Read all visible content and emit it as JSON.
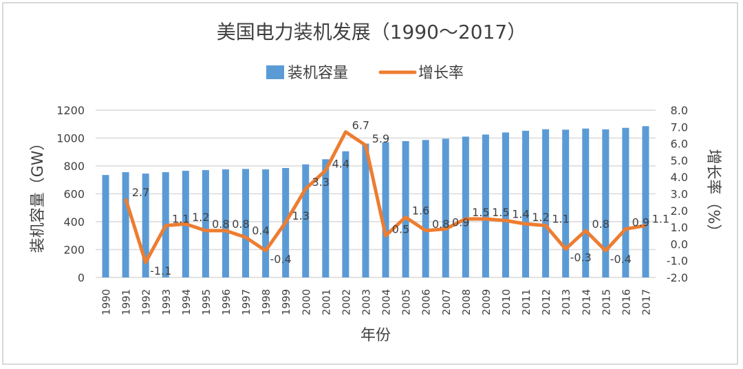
{
  "chart_data": {
    "type": "bar+line",
    "title": "美国电力装机发展（1990～2017）",
    "xlabel": "年份",
    "ylabel_left": "装机容量（GW）",
    "ylabel_right": "增长率（%）",
    "ylim_left": [
      0,
      1200
    ],
    "yticks_left": [
      "0",
      "200",
      "400",
      "600",
      "800",
      "1000",
      "1200"
    ],
    "ylim_right": [
      -2.0,
      8.0
    ],
    "yticks_right": [
      "-2.0",
      "-1.0",
      "0.0",
      "1.0",
      "2.0",
      "3.0",
      "4.0",
      "5.0",
      "6.0",
      "7.0",
      "8.0"
    ],
    "grid": true,
    "legend_position": "top",
    "categories": [
      "1990",
      "1991",
      "1992",
      "1993",
      "1994",
      "1995",
      "1996",
      "1997",
      "1998",
      "1999",
      "2000",
      "2001",
      "2002",
      "2003",
      "2004",
      "2005",
      "2006",
      "2007",
      "2008",
      "2009",
      "2010",
      "2011",
      "2012",
      "2013",
      "2014",
      "2015",
      "2016",
      "2017"
    ],
    "series": [
      {
        "name": "装机容量",
        "type": "bar",
        "color": "#5b9bd5",
        "values": [
          735,
          755,
          745,
          755,
          765,
          770,
          775,
          778,
          775,
          785,
          811,
          848,
          905,
          960,
          970,
          978,
          986,
          995,
          1010,
          1025,
          1040,
          1052,
          1063,
          1060,
          1068,
          1062,
          1073,
          1085
        ]
      },
      {
        "name": "增长率",
        "type": "line",
        "color": "#ed7d31",
        "values": [
          null,
          2.7,
          -1.1,
          1.1,
          1.2,
          0.8,
          0.8,
          0.4,
          -0.4,
          1.3,
          3.3,
          4.4,
          6.7,
          5.9,
          0.5,
          1.6,
          0.8,
          0.9,
          1.5,
          1.5,
          1.4,
          1.2,
          1.1,
          -0.3,
          0.8,
          -0.4,
          0.9,
          1.1
        ],
        "labels": [
          "",
          "2.7",
          "-1.1",
          "1.1",
          "1.2",
          "0.8",
          "0.8",
          "0.4",
          "-0.4",
          "1.3",
          "3.3",
          "4.4",
          "6.7",
          "5.9",
          "0.5",
          "1.6",
          "0.8",
          "0.9",
          "1.5",
          "1.5",
          "1.4",
          "1.2",
          "1.1",
          "-0.3",
          "0.8",
          "-0.4",
          "0.9",
          "1.1"
        ]
      }
    ]
  }
}
